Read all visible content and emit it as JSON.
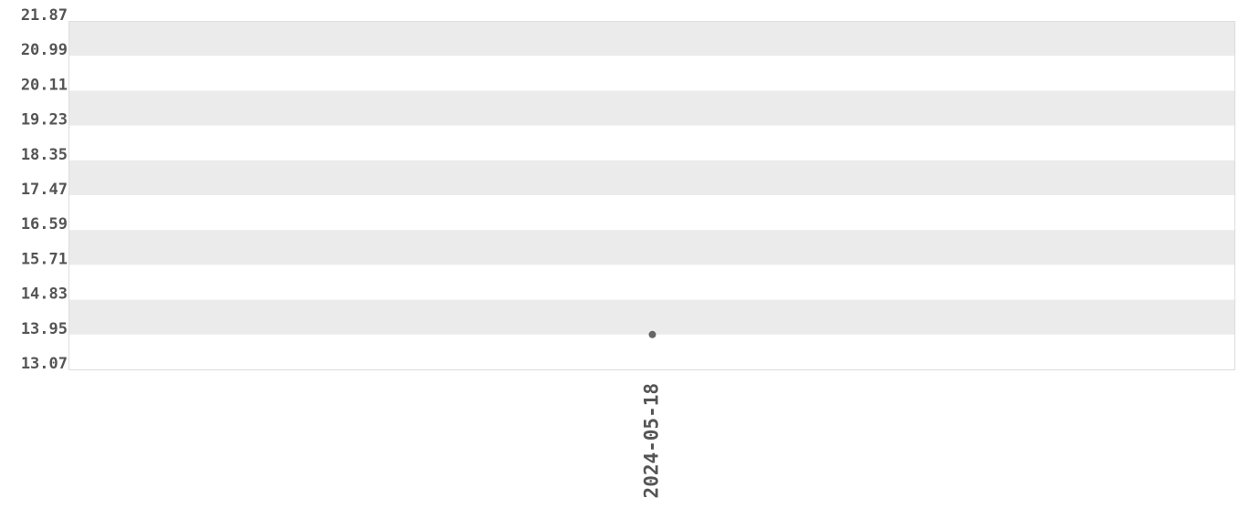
{
  "chart_data": {
    "type": "scatter",
    "title": "",
    "xlabel": "",
    "ylabel": "",
    "x_tick_labels": [
      "2024-05-18"
    ],
    "y_ticks": [
      13.07,
      13.95,
      14.83,
      15.71,
      16.59,
      17.47,
      18.35,
      19.23,
      20.11,
      20.99,
      21.87
    ],
    "y_tick_labels": [
      "13.07",
      "13.95",
      "14.83",
      "15.71",
      "16.59",
      "17.47",
      "18.35",
      "19.23",
      "20.11",
      "20.99",
      "21.87"
    ],
    "ylim": [
      13.07,
      21.87
    ],
    "points": [
      {
        "x": "2024-05-18",
        "y": 13.95
      }
    ],
    "grid": "alternating horizontal bands",
    "legend": "none",
    "colors": {
      "band": "#ebebeb",
      "point": "#666666",
      "text": "#555555",
      "border": "#dddddd"
    }
  }
}
